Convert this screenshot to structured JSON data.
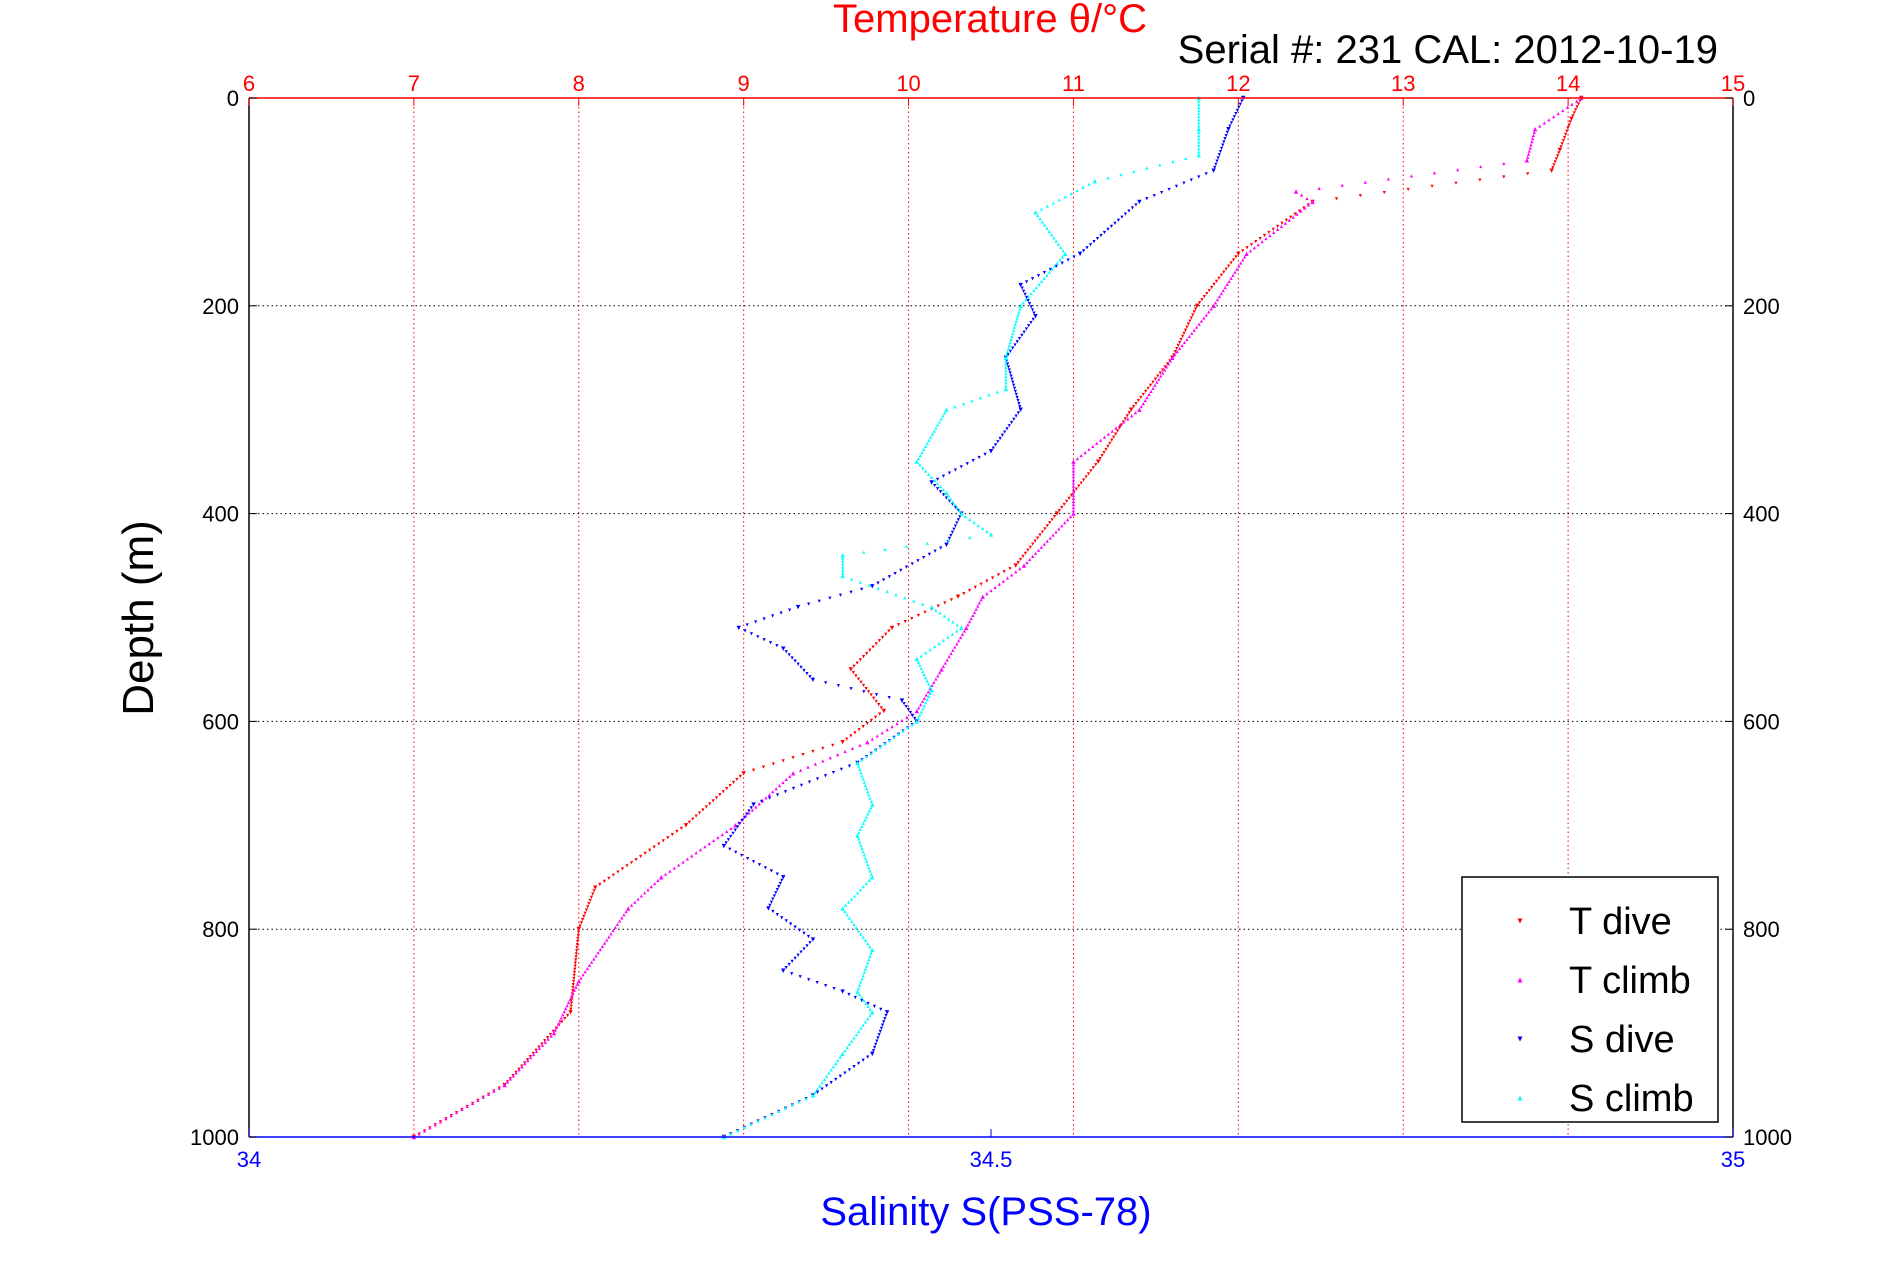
{
  "figure": {
    "top_title": "Temperature θ/°C",
    "serial_label": "Serial #: 231  CAL: 2012-10-19"
  },
  "colors": {
    "temperature_axis": "#ff0000",
    "salinity_axis": "#0000ff",
    "t_dive": "#ff0000",
    "t_climb": "#ff00ff",
    "s_dive": "#0000ff",
    "s_climb": "#00ffff",
    "grid": "#000000"
  },
  "chart_data": {
    "type": "scatter",
    "title": "Temperature θ/°C",
    "ylabel": "Depth (m)",
    "xlabel_bottom": "Salinity S(PSS-78)",
    "xlabel_top": "Temperature θ/°C",
    "y_reversed": true,
    "ylim": [
      0,
      1000
    ],
    "y_ticks": [
      0,
      200,
      400,
      600,
      800,
      1000
    ],
    "y_tick_labels": [
      "0",
      "200",
      "400",
      "600",
      "800",
      "1000"
    ],
    "temperature_axis": {
      "position": "top",
      "range": [
        6,
        15
      ],
      "ticks": [
        6,
        7,
        8,
        9,
        10,
        11,
        12,
        13,
        14,
        15
      ],
      "tick_labels": [
        "6",
        "7",
        "8",
        "9",
        "10",
        "11",
        "12",
        "13",
        "14",
        "15"
      ]
    },
    "salinity_axis": {
      "position": "bottom",
      "range": [
        34,
        35
      ],
      "ticks": [
        34,
        34.5,
        35
      ],
      "tick_labels": [
        "34",
        "34.5",
        "35"
      ]
    },
    "grid": true,
    "legend_position": "bottom-right",
    "series": [
      {
        "name": "T dive",
        "axis": "temperature",
        "marker": "triangle-down",
        "points": [
          [
            14.08,
            0
          ],
          [
            14.02,
            20
          ],
          [
            13.95,
            50
          ],
          [
            13.9,
            70
          ],
          [
            12.45,
            100
          ],
          [
            12.0,
            150
          ],
          [
            11.75,
            200
          ],
          [
            11.6,
            250
          ],
          [
            11.35,
            300
          ],
          [
            11.15,
            350
          ],
          [
            10.9,
            400
          ],
          [
            10.65,
            450
          ],
          [
            10.3,
            480
          ],
          [
            9.9,
            510
          ],
          [
            9.65,
            550
          ],
          [
            9.85,
            590
          ],
          [
            9.6,
            620
          ],
          [
            9.0,
            650
          ],
          [
            8.65,
            700
          ],
          [
            8.1,
            760
          ],
          [
            8.0,
            800
          ],
          [
            7.95,
            880
          ],
          [
            7.55,
            950
          ],
          [
            7.0,
            1000
          ]
        ]
      },
      {
        "name": "T climb",
        "axis": "temperature",
        "marker": "triangle-up",
        "points": [
          [
            14.08,
            0
          ],
          [
            13.8,
            30
          ],
          [
            13.75,
            60
          ],
          [
            12.35,
            90
          ],
          [
            12.45,
            100
          ],
          [
            12.05,
            150
          ],
          [
            11.85,
            200
          ],
          [
            11.6,
            250
          ],
          [
            11.4,
            300
          ],
          [
            11.0,
            350
          ],
          [
            11.0,
            400
          ],
          [
            10.7,
            450
          ],
          [
            10.45,
            480
          ],
          [
            10.35,
            510
          ],
          [
            10.2,
            550
          ],
          [
            10.05,
            590
          ],
          [
            9.75,
            620
          ],
          [
            9.3,
            650
          ],
          [
            8.95,
            700
          ],
          [
            8.5,
            750
          ],
          [
            8.3,
            780
          ],
          [
            8.0,
            850
          ],
          [
            7.85,
            900
          ],
          [
            7.55,
            950
          ],
          [
            7.0,
            1000
          ]
        ]
      },
      {
        "name": "S dive",
        "axis": "salinity",
        "marker": "triangle-down",
        "points": [
          [
            34.67,
            0
          ],
          [
            34.66,
            30
          ],
          [
            34.65,
            70
          ],
          [
            34.6,
            100
          ],
          [
            34.56,
            150
          ],
          [
            34.52,
            180
          ],
          [
            34.53,
            210
          ],
          [
            34.51,
            250
          ],
          [
            34.52,
            300
          ],
          [
            34.5,
            340
          ],
          [
            34.46,
            370
          ],
          [
            34.48,
            400
          ],
          [
            34.47,
            430
          ],
          [
            34.42,
            470
          ],
          [
            34.37,
            490
          ],
          [
            34.33,
            510
          ],
          [
            34.36,
            530
          ],
          [
            34.38,
            560
          ],
          [
            34.44,
            580
          ],
          [
            34.45,
            600
          ],
          [
            34.41,
            640
          ],
          [
            34.34,
            680
          ],
          [
            34.32,
            720
          ],
          [
            34.36,
            750
          ],
          [
            34.35,
            780
          ],
          [
            34.38,
            810
          ],
          [
            34.36,
            840
          ],
          [
            34.4,
            860
          ],
          [
            34.43,
            880
          ],
          [
            34.42,
            920
          ],
          [
            34.38,
            960
          ],
          [
            34.32,
            1000
          ]
        ]
      },
      {
        "name": "S climb",
        "axis": "salinity",
        "marker": "triangle-up",
        "points": [
          [
            34.64,
            0
          ],
          [
            34.64,
            30
          ],
          [
            34.64,
            55
          ],
          [
            34.57,
            80
          ],
          [
            34.53,
            110
          ],
          [
            34.55,
            150
          ],
          [
            34.52,
            200
          ],
          [
            34.51,
            250
          ],
          [
            34.51,
            280
          ],
          [
            34.47,
            300
          ],
          [
            34.45,
            350
          ],
          [
            34.47,
            380
          ],
          [
            34.48,
            400
          ],
          [
            34.5,
            420
          ],
          [
            34.4,
            440
          ],
          [
            34.4,
            460
          ],
          [
            34.46,
            490
          ],
          [
            34.48,
            510
          ],
          [
            34.45,
            540
          ],
          [
            34.46,
            570
          ],
          [
            34.45,
            600
          ],
          [
            34.41,
            640
          ],
          [
            34.42,
            680
          ],
          [
            34.41,
            710
          ],
          [
            34.42,
            750
          ],
          [
            34.4,
            780
          ],
          [
            34.42,
            820
          ],
          [
            34.41,
            860
          ],
          [
            34.42,
            880
          ],
          [
            34.4,
            920
          ],
          [
            34.38,
            960
          ],
          [
            34.32,
            1000
          ]
        ]
      }
    ]
  }
}
